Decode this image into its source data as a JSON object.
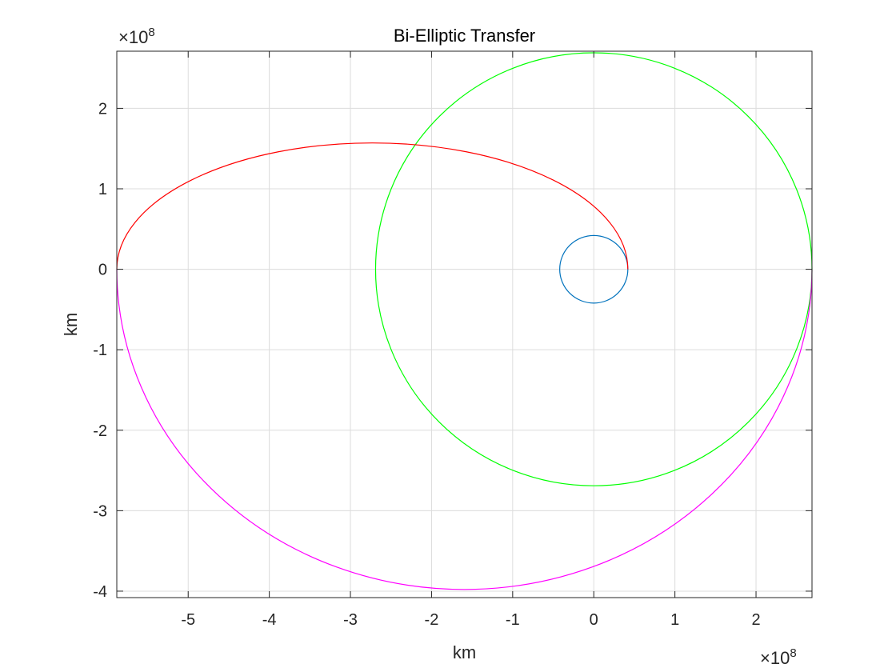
{
  "chart_data": {
    "type": "line",
    "title": "Bi-Elliptic Transfer",
    "xlabel": "km",
    "ylabel": "km",
    "x_exponent": "8",
    "y_exponent": "8",
    "exponent_base": "×10",
    "xlim": [
      -5.88,
      2.69
    ],
    "ylim": [
      -4.08,
      2.71
    ],
    "grid": true,
    "x_ticks": [
      {
        "value": -5,
        "label": "-5"
      },
      {
        "value": -4,
        "label": "-4"
      },
      {
        "value": -3,
        "label": "-3"
      },
      {
        "value": -2,
        "label": "-2"
      },
      {
        "value": -1,
        "label": "-1"
      },
      {
        "value": 0,
        "label": "0"
      },
      {
        "value": 1,
        "label": "1"
      },
      {
        "value": 2,
        "label": "2"
      }
    ],
    "y_ticks": [
      {
        "value": 2,
        "label": "2"
      },
      {
        "value": 1,
        "label": "1"
      },
      {
        "value": 0,
        "label": "0"
      },
      {
        "value": -1,
        "label": "-1"
      },
      {
        "value": -2,
        "label": "-2"
      },
      {
        "value": -3,
        "label": "-3"
      },
      {
        "value": -4,
        "label": "-4"
      }
    ],
    "series": [
      {
        "kind": "circle",
        "color": "#0072BD",
        "cx": 0,
        "cy": 0,
        "r": 0.42
      },
      {
        "kind": "circle",
        "color": "#00FF00",
        "cx": 0,
        "cy": 0,
        "r": 2.69
      },
      {
        "kind": "half-ellipse",
        "color": "#FF0000",
        "cx": -2.73,
        "cy": 0,
        "rx": 3.15,
        "ry": 1.57,
        "half": "upper"
      },
      {
        "kind": "half-ellipse",
        "color": "#FF00FF",
        "cx": -1.595,
        "cy": 0,
        "rx": 4.285,
        "ry": 3.98,
        "half": "lower"
      }
    ]
  }
}
